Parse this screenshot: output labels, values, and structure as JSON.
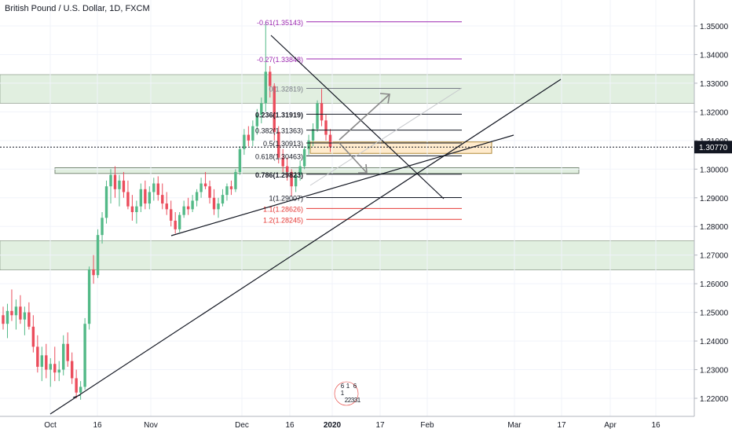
{
  "header": {
    "title": "British Pound / U.S. Dollar, 1D, FXCM"
  },
  "colors": {
    "up": "#53b987",
    "down": "#eb4d5c",
    "zone_green": "rgba(117,184,112,0.22)",
    "zone_green_border": "#7a8a78",
    "zone_orange": "rgba(255,190,90,0.30)",
    "fib_purple": "#9c27b0",
    "fib_red": "#e53935",
    "fib_black": "#131722",
    "price_tag_bg": "#131722",
    "axis_text": "#131722",
    "grid": "#f0f3fa"
  },
  "current_price": "1.30770",
  "chart_data": {
    "type": "candlestick",
    "symbol": "British Pound / U.S. Dollar",
    "timeframe": "1D",
    "source": "FXCM",
    "y_ticks": [
      "1.35000",
      "1.34000",
      "1.33000",
      "1.32000",
      "1.31000",
      "1.30000",
      "1.29000",
      "1.28000",
      "1.27000",
      "1.26000",
      "1.25000",
      "1.24000",
      "1.23000",
      "1.22000"
    ],
    "x_ticks": [
      "Oct",
      "16",
      "Nov",
      "Dec",
      "16",
      "2020",
      "17",
      "Feb",
      "Mar",
      "17",
      "Apr",
      "16"
    ],
    "x_ticks_bold": [
      "2020"
    ],
    "ylim": [
      1.215,
      1.356
    ],
    "candles": [
      [
        1.249,
        1.252,
        1.244,
        1.246
      ],
      [
        1.246,
        1.253,
        1.241,
        1.2505
      ],
      [
        1.2505,
        1.258,
        1.247,
        1.249
      ],
      [
        1.249,
        1.2545,
        1.244,
        1.252
      ],
      [
        1.252,
        1.256,
        1.246,
        1.2475
      ],
      [
        1.2475,
        1.252,
        1.242,
        1.25
      ],
      [
        1.25,
        1.2535,
        1.244,
        1.245
      ],
      [
        1.245,
        1.249,
        1.236,
        1.238
      ],
      [
        1.238,
        1.242,
        1.229,
        1.231
      ],
      [
        1.231,
        1.238,
        1.226,
        1.235
      ],
      [
        1.235,
        1.239,
        1.227,
        1.23
      ],
      [
        1.23,
        1.234,
        1.224,
        1.232
      ],
      [
        1.232,
        1.238,
        1.226,
        1.229
      ],
      [
        1.229,
        1.233,
        1.226,
        1.23
      ],
      [
        1.23,
        1.242,
        1.228,
        1.239
      ],
      [
        1.239,
        1.243,
        1.231,
        1.233
      ],
      [
        1.233,
        1.236,
        1.225,
        1.227
      ],
      [
        1.227,
        1.23,
        1.22,
        1.222
      ],
      [
        1.222,
        1.226,
        1.2195,
        1.224
      ],
      [
        1.224,
        1.248,
        1.223,
        1.246
      ],
      [
        1.246,
        1.266,
        1.244,
        1.265
      ],
      [
        1.265,
        1.27,
        1.26,
        1.263
      ],
      [
        1.263,
        1.279,
        1.262,
        1.277
      ],
      [
        1.277,
        1.285,
        1.274,
        1.283
      ],
      [
        1.283,
        1.296,
        1.281,
        1.294
      ],
      [
        1.294,
        1.3,
        1.288,
        1.298
      ],
      [
        1.298,
        1.301,
        1.29,
        1.293
      ],
      [
        1.293,
        1.298,
        1.287,
        1.296
      ],
      [
        1.296,
        1.299,
        1.29,
        1.292
      ],
      [
        1.292,
        1.296,
        1.286,
        1.287
      ],
      [
        1.287,
        1.291,
        1.282,
        1.285
      ],
      [
        1.285,
        1.289,
        1.281,
        1.287
      ],
      [
        1.287,
        1.295,
        1.285,
        1.293
      ],
      [
        1.293,
        1.296,
        1.286,
        1.288
      ],
      [
        1.288,
        1.294,
        1.286,
        1.292
      ],
      [
        1.292,
        1.297,
        1.289,
        1.295
      ],
      [
        1.295,
        1.2975,
        1.289,
        1.291
      ],
      [
        1.291,
        1.295,
        1.286,
        1.288
      ],
      [
        1.288,
        1.292,
        1.284,
        1.286
      ],
      [
        1.286,
        1.289,
        1.28,
        1.282
      ],
      [
        1.282,
        1.285,
        1.2775,
        1.279
      ],
      [
        1.279,
        1.285,
        1.278,
        1.284
      ],
      [
        1.284,
        1.289,
        1.283,
        1.287
      ],
      [
        1.287,
        1.29,
        1.284,
        1.286
      ],
      [
        1.286,
        1.291,
        1.285,
        1.289
      ],
      [
        1.289,
        1.293,
        1.287,
        1.292
      ],
      [
        1.292,
        1.297,
        1.29,
        1.295
      ],
      [
        1.295,
        1.299,
        1.293,
        1.294
      ],
      [
        1.294,
        1.296,
        1.288,
        1.29
      ],
      [
        1.29,
        1.293,
        1.284,
        1.286
      ],
      [
        1.286,
        1.29,
        1.283,
        1.288
      ],
      [
        1.288,
        1.293,
        1.287,
        1.291
      ],
      [
        1.291,
        1.295,
        1.289,
        1.294
      ],
      [
        1.294,
        1.296,
        1.291,
        1.293
      ],
      [
        1.293,
        1.3,
        1.292,
        1.299
      ],
      [
        1.299,
        1.308,
        1.298,
        1.307
      ],
      [
        1.307,
        1.314,
        1.305,
        1.312
      ],
      [
        1.312,
        1.315,
        1.308,
        1.31
      ],
      [
        1.31,
        1.317,
        1.308,
        1.315
      ],
      [
        1.315,
        1.321,
        1.312,
        1.319
      ],
      [
        1.319,
        1.325,
        1.316,
        1.323
      ],
      [
        1.323,
        1.3515,
        1.32,
        1.334
      ],
      [
        1.334,
        1.336,
        1.325,
        1.329
      ],
      [
        1.329,
        1.33,
        1.31,
        1.313
      ],
      [
        1.313,
        1.315,
        1.302,
        1.304
      ],
      [
        1.304,
        1.307,
        1.299,
        1.301
      ],
      [
        1.301,
        1.304,
        1.296,
        1.299
      ],
      [
        1.299,
        1.3,
        1.2905,
        1.294
      ],
      [
        1.294,
        1.299,
        1.292,
        1.298
      ],
      [
        1.298,
        1.303,
        1.296,
        1.301
      ],
      [
        1.301,
        1.308,
        1.3,
        1.307
      ],
      [
        1.307,
        1.312,
        1.305,
        1.31
      ],
      [
        1.31,
        1.316,
        1.308,
        1.314
      ],
      [
        1.314,
        1.324,
        1.313,
        1.323
      ],
      [
        1.323,
        1.328,
        1.315,
        1.317
      ],
      [
        1.317,
        1.319,
        1.31,
        1.312
      ],
      [
        1.312,
        1.314,
        1.306,
        1.3077
      ]
    ],
    "fib_levels": [
      {
        "label": "-0.61(1.35143)",
        "value": 1.35143,
        "color": "#9c27b0",
        "bold": false
      },
      {
        "label": "-0.27(1.33848)",
        "value": 1.33848,
        "color": "#9c27b0",
        "bold": false
      },
      {
        "label": "0(1.32819)",
        "value": 1.32819,
        "color": "#787b86",
        "bold": false
      },
      {
        "label": "0.236(1.31919)",
        "value": 1.31919,
        "color": "#131722",
        "bold": true
      },
      {
        "label": "0.382(1.31363)",
        "value": 1.31363,
        "color": "#131722",
        "bold": false
      },
      {
        "label": "0.5(1.30913)",
        "value": 1.30913,
        "color": "#131722",
        "bold": false
      },
      {
        "label": "0.618(1.30463)",
        "value": 1.30463,
        "color": "#131722",
        "bold": false
      },
      {
        "label": "0.786(1.29823)",
        "value": 1.29823,
        "color": "#131722",
        "bold": true
      },
      {
        "label": "1(1.29007)",
        "value": 1.29007,
        "color": "#131722",
        "bold": false
      },
      {
        "label": "1.1(1.28626)",
        "value": 1.28626,
        "color": "#e53935",
        "bold": false
      },
      {
        "label": "1.2(1.28245)",
        "value": 1.28245,
        "color": "#e53935",
        "bold": false
      }
    ],
    "zones": [
      {
        "kind": "green",
        "from_price": 1.333,
        "to_price": 1.323,
        "span": "full"
      },
      {
        "kind": "green",
        "from_price": 1.3005,
        "to_price": 1.2985,
        "span": "partial"
      },
      {
        "kind": "green",
        "from_price": 1.275,
        "to_price": 1.2648,
        "span": "full"
      },
      {
        "kind": "orange",
        "from_price": 1.3095,
        "to_price": 1.3055,
        "span": "partial"
      }
    ],
    "event_markers": [
      "6",
      "1",
      "6",
      "1",
      "2",
      "2",
      "3",
      "3",
      "1"
    ]
  }
}
